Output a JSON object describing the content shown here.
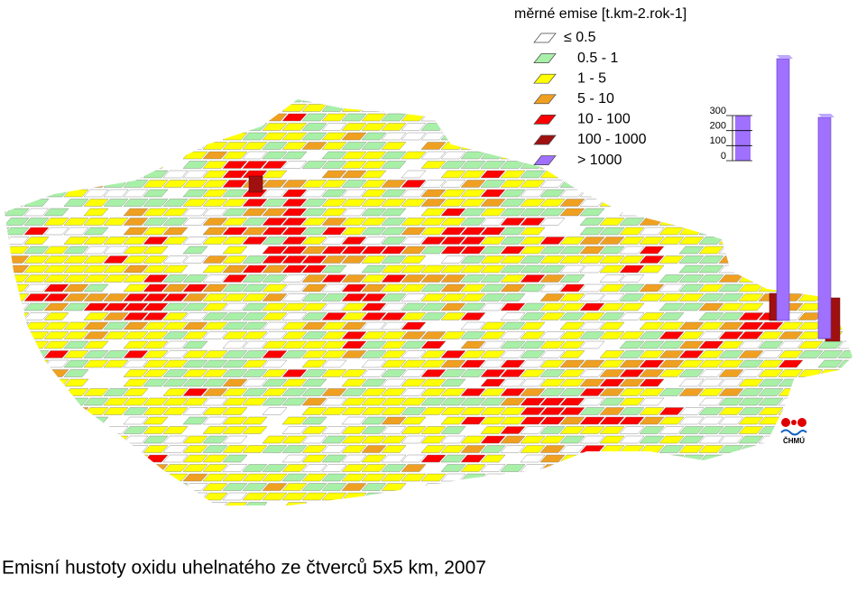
{
  "legend": {
    "title": "měrné emise [t.km-2.rok-1]",
    "items": [
      {
        "label": "≤ 0.5",
        "color": "#ffffff"
      },
      {
        "label": "0.5 - 1",
        "color": "#a8f0a8"
      },
      {
        "label": "1 - 5",
        "color": "#ffff00"
      },
      {
        "label": "5 - 10",
        "color": "#f0a020"
      },
      {
        "label": "10 - 100",
        "color": "#ff0000"
      },
      {
        "label": "100 - 1000",
        "color": "#a01010"
      },
      {
        "label": "> 1000",
        "color": "#a070ff"
      }
    ]
  },
  "scale": {
    "ticks": [
      300,
      200,
      100,
      0
    ],
    "lim": [
      0,
      300
    ]
  },
  "columns": [
    {
      "value": 1740
    },
    {
      "value": 1470
    }
  ],
  "logo": {
    "text": "ČHMÚ"
  },
  "caption": "Emisní hustoty oxidu uhelnatého ze čtverců 5x5 km, 2007"
}
